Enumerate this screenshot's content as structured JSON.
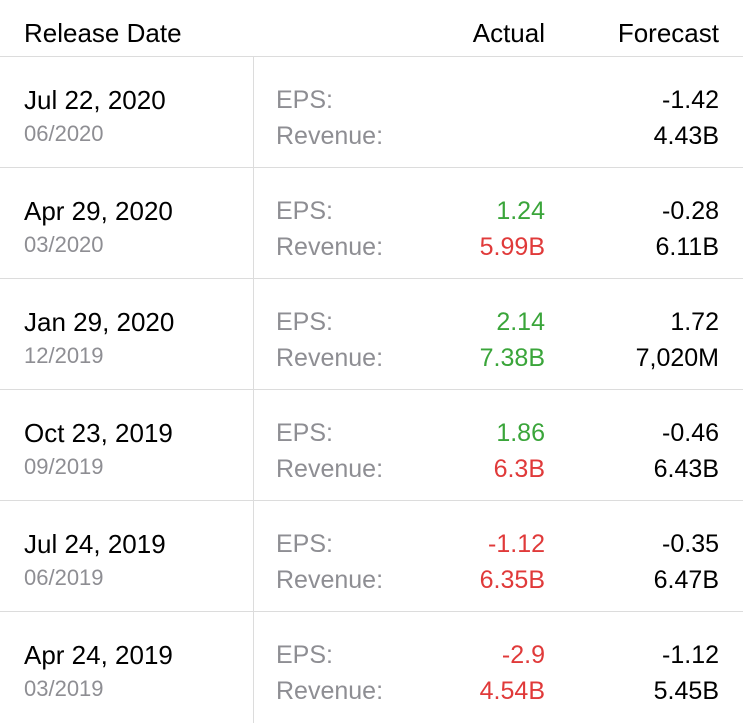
{
  "header": {
    "release_date": "Release Date",
    "actual": "Actual",
    "forecast": "Forecast"
  },
  "labels": {
    "eps": "EPS:",
    "revenue": "Revenue:"
  },
  "colors": {
    "positive": "#3aa53a",
    "negative": "#e03a3a",
    "muted": "#8e8e93"
  },
  "rows": [
    {
      "date": "Jul 22, 2020",
      "period": "06/2020",
      "eps_actual": "",
      "eps_actual_status": "none",
      "eps_forecast": "-1.42",
      "revenue_actual": "",
      "revenue_actual_status": "none",
      "revenue_forecast": "4.43B"
    },
    {
      "date": "Apr 29, 2020",
      "period": "03/2020",
      "eps_actual": "1.24",
      "eps_actual_status": "up",
      "eps_forecast": "-0.28",
      "revenue_actual": "5.99B",
      "revenue_actual_status": "down",
      "revenue_forecast": "6.11B"
    },
    {
      "date": "Jan 29, 2020",
      "period": "12/2019",
      "eps_actual": "2.14",
      "eps_actual_status": "up",
      "eps_forecast": "1.72",
      "revenue_actual": "7.38B",
      "revenue_actual_status": "up",
      "revenue_forecast": "7,020M"
    },
    {
      "date": "Oct 23, 2019",
      "period": "09/2019",
      "eps_actual": "1.86",
      "eps_actual_status": "up",
      "eps_forecast": "-0.46",
      "revenue_actual": "6.3B",
      "revenue_actual_status": "down",
      "revenue_forecast": "6.43B"
    },
    {
      "date": "Jul 24, 2019",
      "period": "06/2019",
      "eps_actual": "-1.12",
      "eps_actual_status": "down",
      "eps_forecast": "-0.35",
      "revenue_actual": "6.35B",
      "revenue_actual_status": "down",
      "revenue_forecast": "6.47B"
    },
    {
      "date": "Apr 24, 2019",
      "period": "03/2019",
      "eps_actual": "-2.9",
      "eps_actual_status": "down",
      "eps_forecast": "-1.12",
      "revenue_actual": "4.54B",
      "revenue_actual_status": "down",
      "revenue_forecast": "5.45B"
    }
  ]
}
